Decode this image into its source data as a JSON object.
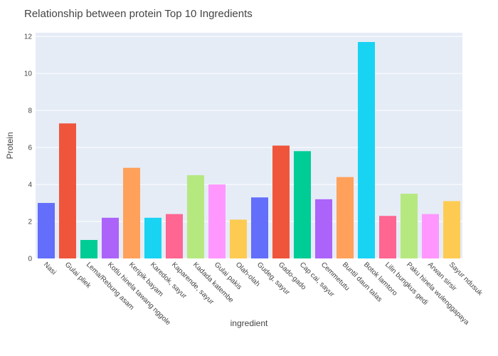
{
  "chart_data": {
    "type": "bar",
    "title": "Relationship between protein Top 10 Ingredients",
    "xlabel": "ingredient",
    "ylabel": "Protein",
    "ylim": [
      0,
      12.2
    ],
    "yticks": [
      0,
      2,
      4,
      6,
      8,
      10,
      12
    ],
    "grid": true,
    "legend": "none",
    "categories": [
      "Nasi",
      "Gulai pliek",
      "Lema/Rebung asam",
      "Kotlu hinela tawang nggole",
      "Keripik bayam",
      "Karedok, sayur",
      "Kaparende, sayur",
      "Kadada katembe",
      "Gulai pakis",
      "Olah-olah",
      "Gudeg, sayur",
      "Gado-gado",
      "Cap cai, sayur",
      "Cemmetutu",
      "Buntil daun talas",
      "Botok lamtoro",
      "Lilin bungkus gedi",
      "Paku hinela wulenggapaya",
      "Arwan sirsir",
      "Sayur ndusuk"
    ],
    "values": [
      3.0,
      7.3,
      1.0,
      2.2,
      4.9,
      2.2,
      2.4,
      4.5,
      4.0,
      2.1,
      3.3,
      6.1,
      5.8,
      3.2,
      4.4,
      11.7,
      2.3,
      3.5,
      2.4,
      3.1
    ],
    "colors": [
      "#636efa",
      "#EF553B",
      "#00cc96",
      "#ab63fa",
      "#FFA15A",
      "#19d3f3",
      "#FF6692",
      "#B6E880",
      "#FF97FF",
      "#FECB52",
      "#636efa",
      "#EF553B",
      "#00cc96",
      "#ab63fa",
      "#FFA15A",
      "#19d3f3",
      "#FF6692",
      "#B6E880",
      "#FF97FF",
      "#FECB52"
    ],
    "plot_background": "#E5ECF6"
  }
}
